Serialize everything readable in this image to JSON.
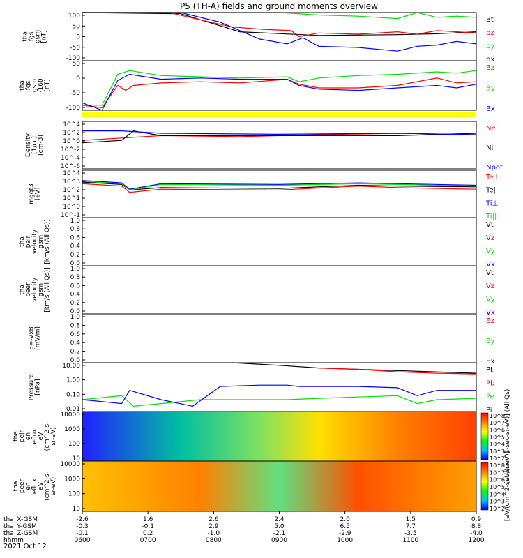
{
  "title": "P5 (TH-A) fields and ground moments overview",
  "date_label": "2021 Oct 12",
  "colors": {
    "black": "#000000",
    "red": "#ff0000",
    "green": "#00e000",
    "blue": "#0000ff",
    "yellow": "#ffff00"
  },
  "chart_data": [
    {
      "type": "line",
      "id": "fgs",
      "ylabel": [
        "tha",
        "fgs",
        "gsm",
        "[nT]"
      ],
      "ylim": [
        -100,
        100
      ],
      "yticks": [
        "100",
        "50",
        "0",
        "-50",
        "-100"
      ],
      "series": [
        {
          "name": "Bt",
          "color": "black",
          "points": [
            [
              0.0,
              100
            ],
            [
              0.25,
              95
            ],
            [
              0.4,
              20
            ],
            [
              0.6,
              5
            ],
            [
              0.8,
              8
            ],
            [
              0.9,
              12
            ],
            [
              0.94,
              15
            ],
            [
              1.0,
              20
            ]
          ]
        },
        {
          "name": "bz",
          "color": "red",
          "points": [
            [
              0.0,
              100
            ],
            [
              0.22,
              100
            ],
            [
              0.3,
              70
            ],
            [
              0.38,
              40
            ],
            [
              0.46,
              30
            ],
            [
              0.53,
              25
            ],
            [
              0.55,
              0
            ],
            [
              0.6,
              15
            ],
            [
              0.7,
              10
            ],
            [
              0.8,
              20
            ],
            [
              0.85,
              10
            ],
            [
              0.9,
              25
            ],
            [
              0.95,
              20
            ],
            [
              1.0,
              15
            ]
          ]
        },
        {
          "name": "by",
          "color": "green",
          "points": [
            [
              0.0,
              100
            ],
            [
              0.5,
              100
            ],
            [
              0.6,
              90
            ],
            [
              0.7,
              85
            ],
            [
              0.8,
              75
            ],
            [
              0.85,
              100
            ],
            [
              0.9,
              80
            ],
            [
              0.95,
              85
            ],
            [
              1.0,
              80
            ]
          ]
        },
        {
          "name": "bx",
          "color": "blue",
          "points": [
            [
              0.0,
              100
            ],
            [
              0.25,
              100
            ],
            [
              0.35,
              60
            ],
            [
              0.45,
              -10
            ],
            [
              0.52,
              -30
            ],
            [
              0.56,
              -5
            ],
            [
              0.6,
              -40
            ],
            [
              0.7,
              -45
            ],
            [
              0.8,
              -60
            ],
            [
              0.85,
              -40
            ],
            [
              0.9,
              -35
            ],
            [
              0.95,
              -20
            ],
            [
              1.0,
              -30
            ]
          ]
        }
      ]
    },
    {
      "type": "line",
      "id": "fgs_dsl",
      "ylabel": [
        "tha",
        "fgs",
        "gsm",
        "-160",
        "[nT]"
      ],
      "ylim": [
        -120,
        80
      ],
      "yticks": [
        "50",
        "0",
        "-50",
        "-100"
      ],
      "series": [
        {
          "name": "Bz",
          "color": "red",
          "points": [
            [
              0.0,
              -100
            ],
            [
              0.05,
              -110
            ],
            [
              0.09,
              -20
            ],
            [
              0.11,
              -40
            ],
            [
              0.13,
              -20
            ],
            [
              0.2,
              -10
            ],
            [
              0.3,
              -5
            ],
            [
              0.4,
              -10
            ],
            [
              0.52,
              5
            ],
            [
              0.55,
              -15
            ],
            [
              0.6,
              -30
            ],
            [
              0.7,
              -30
            ],
            [
              0.8,
              -20
            ],
            [
              0.9,
              10
            ],
            [
              0.95,
              -10
            ],
            [
              1.0,
              -5
            ]
          ]
        },
        {
          "name": "By",
          "color": "green",
          "points": [
            [
              0.0,
              -100
            ],
            [
              0.05,
              -100
            ],
            [
              0.09,
              25
            ],
            [
              0.12,
              40
            ],
            [
              0.2,
              20
            ],
            [
              0.3,
              15
            ],
            [
              0.4,
              10
            ],
            [
              0.52,
              15
            ],
            [
              0.55,
              -5
            ],
            [
              0.6,
              10
            ],
            [
              0.7,
              20
            ],
            [
              0.8,
              25
            ],
            [
              0.9,
              35
            ],
            [
              0.95,
              30
            ],
            [
              1.0,
              40
            ]
          ]
        },
        {
          "name": "Bx",
          "color": "blue",
          "points": [
            [
              0.0,
              -90
            ],
            [
              0.05,
              -120
            ],
            [
              0.09,
              0
            ],
            [
              0.12,
              25
            ],
            [
              0.2,
              5
            ],
            [
              0.3,
              10
            ],
            [
              0.4,
              5
            ],
            [
              0.52,
              5
            ],
            [
              0.55,
              -20
            ],
            [
              0.6,
              -35
            ],
            [
              0.7,
              -40
            ],
            [
              0.8,
              -30
            ],
            [
              0.9,
              -20
            ],
            [
              0.95,
              -30
            ],
            [
              1.0,
              -15
            ]
          ]
        }
      ]
    },
    {
      "type": "line",
      "id": "density",
      "ylabel": [
        "Density",
        "[1/cc]",
        "[cm-3]"
      ],
      "log": true,
      "ylim": [
        -6,
        4
      ],
      "yticks": [
        "10^4",
        "10^2",
        "10^0",
        "10^-2",
        "10^-4",
        "10^-6"
      ],
      "series": [
        {
          "name": "Ne",
          "color": "red",
          "points": [
            [
              0.0,
              0
            ],
            [
              0.1,
              0.5
            ],
            [
              0.2,
              1
            ],
            [
              0.4,
              0.8
            ],
            [
              0.6,
              1.2
            ],
            [
              0.8,
              1.5
            ],
            [
              1.0,
              1.2
            ]
          ]
        },
        {
          "name": "Ni",
          "color": "black",
          "points": [
            [
              0.0,
              -0.5
            ],
            [
              0.1,
              0
            ],
            [
              0.13,
              2
            ],
            [
              0.2,
              1
            ],
            [
              0.3,
              1
            ],
            [
              0.5,
              1
            ],
            [
              0.8,
              1
            ],
            [
              1.0,
              1.5
            ]
          ]
        },
        {
          "name": "Npot",
          "color": "blue",
          "points": [
            [
              0.0,
              2
            ],
            [
              0.1,
              2
            ],
            [
              0.2,
              1.5
            ],
            [
              0.5,
              1.3
            ],
            [
              0.8,
              1.5
            ],
            [
              1.0,
              1.2
            ]
          ]
        }
      ]
    },
    {
      "type": "line",
      "id": "temperature",
      "ylabel": [
        "mgqt3",
        "[eV]"
      ],
      "log": true,
      "ylim": [
        -1,
        5
      ],
      "yticks": [
        "10^4",
        "10^3",
        "10^2",
        "10^1",
        "10^0",
        "10^-1"
      ],
      "series": [
        {
          "name": "Te⊥",
          "color": "red",
          "points": [
            [
              0.0,
              3.3
            ],
            [
              0.1,
              3
            ],
            [
              0.12,
              2.2
            ],
            [
              0.2,
              2.6
            ],
            [
              0.5,
              2.5
            ],
            [
              0.7,
              3
            ],
            [
              0.8,
              2.8
            ],
            [
              1.0,
              2.6
            ]
          ]
        },
        {
          "name": "Te||",
          "color": "black",
          "points": [
            [
              0.0,
              3.5
            ],
            [
              0.1,
              3.2
            ],
            [
              0.12,
              2.5
            ],
            [
              0.2,
              2.8
            ],
            [
              0.5,
              2.7
            ],
            [
              0.7,
              3.1
            ],
            [
              0.8,
              3
            ],
            [
              1.0,
              2.9
            ]
          ]
        },
        {
          "name": "Ti⊥",
          "color": "blue",
          "points": [
            [
              0.0,
              3.7
            ],
            [
              0.1,
              3.4
            ],
            [
              0.12,
              2.6
            ],
            [
              0.2,
              3.3
            ],
            [
              0.5,
              3.2
            ],
            [
              0.7,
              3.4
            ],
            [
              0.8,
              3.3
            ],
            [
              1.0,
              3.1
            ]
          ]
        },
        {
          "name": "Ti||",
          "color": "green",
          "points": [
            [
              0.0,
              3.6
            ],
            [
              0.1,
              3.3
            ],
            [
              0.12,
              2.5
            ],
            [
              0.2,
              3.2
            ],
            [
              0.5,
              3.1
            ],
            [
              0.7,
              3.3
            ],
            [
              0.8,
              3.2
            ],
            [
              1.0,
              3
            ]
          ]
        }
      ]
    },
    {
      "type": "line",
      "id": "peir_vel",
      "ylabel": [
        "tha",
        "peir",
        "velocity",
        "gsm",
        "[km/s (All Qs)]"
      ],
      "ylim": [
        0,
        1
      ],
      "yticks": [
        "1.0",
        "0.8",
        "0.6",
        "0.4",
        "0.2",
        "0.0"
      ],
      "series": [
        {
          "name": "Vt",
          "color": "black"
        },
        {
          "name": "Vz",
          "color": "red"
        },
        {
          "name": "Vy",
          "color": "green"
        },
        {
          "name": "Vx",
          "color": "blue"
        }
      ]
    },
    {
      "type": "line",
      "id": "peer_vel",
      "ylabel": [
        "tha",
        "peer",
        "velocity",
        "gsm",
        "[km/s (All Qs)]"
      ],
      "ylim": [
        0,
        1
      ],
      "yticks": [
        "1.0",
        "0.8",
        "0.6",
        "0.4",
        "0.2",
        "0.0"
      ],
      "series": [
        {
          "name": "Vt",
          "color": "black"
        },
        {
          "name": "Vz",
          "color": "red"
        },
        {
          "name": "Vy",
          "color": "green"
        },
        {
          "name": "Vx",
          "color": "blue"
        }
      ]
    },
    {
      "type": "line",
      "id": "efield",
      "ylabel": [
        "E=-VxB",
        "[mV/m]"
      ],
      "ylim": [
        0,
        1
      ],
      "yticks": [
        "1.0",
        "0.8",
        "0.6",
        "0.4",
        "0.2",
        "0.0"
      ],
      "series": [
        {
          "name": "Ez",
          "color": "red"
        },
        {
          "name": "Ey",
          "color": "green"
        },
        {
          "name": "Ex",
          "color": "blue"
        }
      ]
    },
    {
      "type": "line",
      "id": "pressure",
      "ylabel": [
        "Pressure",
        "[nPa]"
      ],
      "log": true,
      "ylim": [
        -2.4,
        1.3
      ],
      "yticks": [
        "10.00",
        "1.00",
        "0.10",
        "0.01"
      ],
      "series": [
        {
          "name": "Pt",
          "color": "black",
          "points": [
            [
              0.38,
              1.3
            ],
            [
              0.5,
              1.1
            ],
            [
              0.6,
              0.9
            ],
            [
              0.7,
              0.8
            ],
            [
              0.8,
              0.7
            ],
            [
              0.9,
              0.6
            ],
            [
              1.0,
              0.5
            ]
          ]
        },
        {
          "name": "Pb",
          "color": "red",
          "points": [
            [
              0.6,
              0.9
            ],
            [
              0.7,
              0.8
            ],
            [
              0.8,
              0.6
            ],
            [
              0.9,
              0.5
            ],
            [
              1.0,
              0.45
            ]
          ]
        },
        {
          "name": "Pe",
          "color": "green",
          "points": [
            [
              0.0,
              -1.5
            ],
            [
              0.1,
              -1.2
            ],
            [
              0.13,
              -2
            ],
            [
              0.2,
              -1.8
            ],
            [
              0.3,
              -1.5
            ],
            [
              0.4,
              -1.5
            ],
            [
              0.52,
              -1.5
            ],
            [
              0.6,
              -1.4
            ],
            [
              0.7,
              -1.3
            ],
            [
              0.8,
              -1.2
            ],
            [
              0.85,
              -1.8
            ],
            [
              0.9,
              -1.5
            ],
            [
              1.0,
              -1.4
            ]
          ]
        },
        {
          "name": "Pi",
          "color": "blue",
          "points": [
            [
              0.0,
              -1.5
            ],
            [
              0.1,
              -1.8
            ],
            [
              0.12,
              -0.8
            ],
            [
              0.2,
              -1.5
            ],
            [
              0.28,
              -2
            ],
            [
              0.35,
              -0.5
            ],
            [
              0.45,
              -0.4
            ],
            [
              0.52,
              -0.4
            ],
            [
              0.55,
              -0.5
            ],
            [
              0.6,
              -0.5
            ],
            [
              0.7,
              -0.5
            ],
            [
              0.8,
              -0.6
            ],
            [
              0.85,
              -1.2
            ],
            [
              0.9,
              -0.8
            ],
            [
              1.0,
              -0.8
            ]
          ]
        }
      ]
    },
    {
      "type": "heatmap",
      "id": "peir_spec",
      "ylabel": [
        "tha",
        "peir",
        "en",
        "eflux",
        "eV",
        "(cm^2-s-",
        "sr-eV)"
      ],
      "yticks": [
        "10000",
        "1000",
        "100",
        "10"
      ],
      "colorbar_ticks": [
        "10^8",
        "10^7",
        "10^6",
        "10^5",
        "10^4",
        "10^3",
        "10^2"
      ],
      "colorbar_label": "[eV/(cm^2-sec-sr-eV)] (All Qs)"
    },
    {
      "type": "heatmap",
      "id": "peer_spec",
      "ylabel": [
        "tha",
        "peer",
        "en",
        "eflux",
        "eV",
        "(cm^2-s-",
        "sr-eV)"
      ],
      "yticks": [
        "10000",
        "1000",
        "100",
        "10"
      ],
      "colorbar_ticks": [
        "10^8",
        "10^7",
        "10^6",
        "10^5",
        "10^4",
        "10^3",
        "10^2"
      ],
      "colorbar_label": "[eV/(cm^2-sec-sr-eV)]"
    }
  ],
  "x_axis": {
    "rows": [
      {
        "label": "tha_X-GSM",
        "values": [
          "-2.6",
          "1.6",
          "2.6",
          "2.4",
          "2.0",
          "1.5",
          "0.9"
        ]
      },
      {
        "label": "tha_Y-GSM",
        "values": [
          "-0.3",
          "-0.1",
          "2.9",
          "5.0",
          "6.5",
          "7.7",
          "8.8"
        ]
      },
      {
        "label": "tha_Z-GSM",
        "values": [
          "-0.1",
          "0.2",
          "-1.0",
          "-2.1",
          "-2.9",
          "-3.5",
          "-4.0"
        ]
      },
      {
        "label": "hhmm",
        "values": [
          "0600",
          "0700",
          "0800",
          "0900",
          "1000",
          "1100",
          "1200"
        ]
      }
    ]
  }
}
